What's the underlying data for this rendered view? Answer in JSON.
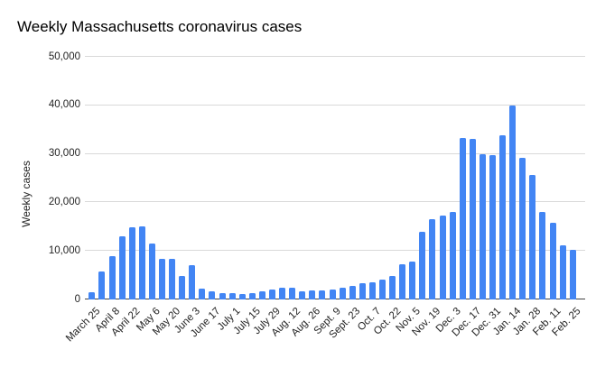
{
  "colors": {
    "background": "#ffffff",
    "bar": "#4285f4",
    "gridline": "#d9d9d9",
    "axis_line": "#424242",
    "title_text": "#000000",
    "tick_text": "#222222"
  },
  "chart_data": {
    "type": "bar",
    "title": "Weekly Massachusetts coronavirus cases",
    "xlabel": "",
    "ylabel": "Weekly cases",
    "ylim": [
      0,
      50000
    ],
    "grid": true,
    "legend_position": "none",
    "ytick_values": [
      0,
      10000,
      20000,
      30000,
      40000,
      50000
    ],
    "ytick_labels": [
      "0",
      "10,000",
      "20,000",
      "30,000",
      "40,000",
      "50,000"
    ],
    "categories": [
      "March 25",
      "",
      "April 8",
      "",
      "April 22",
      "",
      "May 6",
      "",
      "May 20",
      "",
      "June 3",
      "",
      "June 17",
      "",
      "July 1",
      "",
      "July 15",
      "",
      "July 29",
      "",
      "Aug. 12",
      "",
      "Aug. 26",
      "",
      "Sept. 9",
      "",
      "Sept. 23",
      "",
      "Oct. 7",
      "",
      "Oct. 22",
      "",
      "Nov. 5",
      "",
      "Nov. 19",
      "",
      "Dec. 3",
      "",
      "Dec. 17",
      "",
      "Dec. 31",
      "",
      "Jan. 14",
      "",
      "Jan. 28",
      "",
      "Feb. 11",
      "",
      "Feb. 25"
    ],
    "values": [
      1400,
      5700,
      8900,
      13000,
      14800,
      15100,
      11600,
      8400,
      8300,
      4800,
      7100,
      2200,
      1700,
      1300,
      1250,
      1100,
      1300,
      1600,
      2000,
      2500,
      2400,
      1700,
      1900,
      1800,
      2000,
      2400,
      2800,
      3300,
      3500,
      4100,
      4800,
      7200,
      7900,
      13900,
      16600,
      17300,
      18100,
      33300,
      33000,
      30000,
      29700,
      33800,
      40000,
      29200,
      25600,
      18100,
      15800,
      11100,
      10300
    ]
  }
}
